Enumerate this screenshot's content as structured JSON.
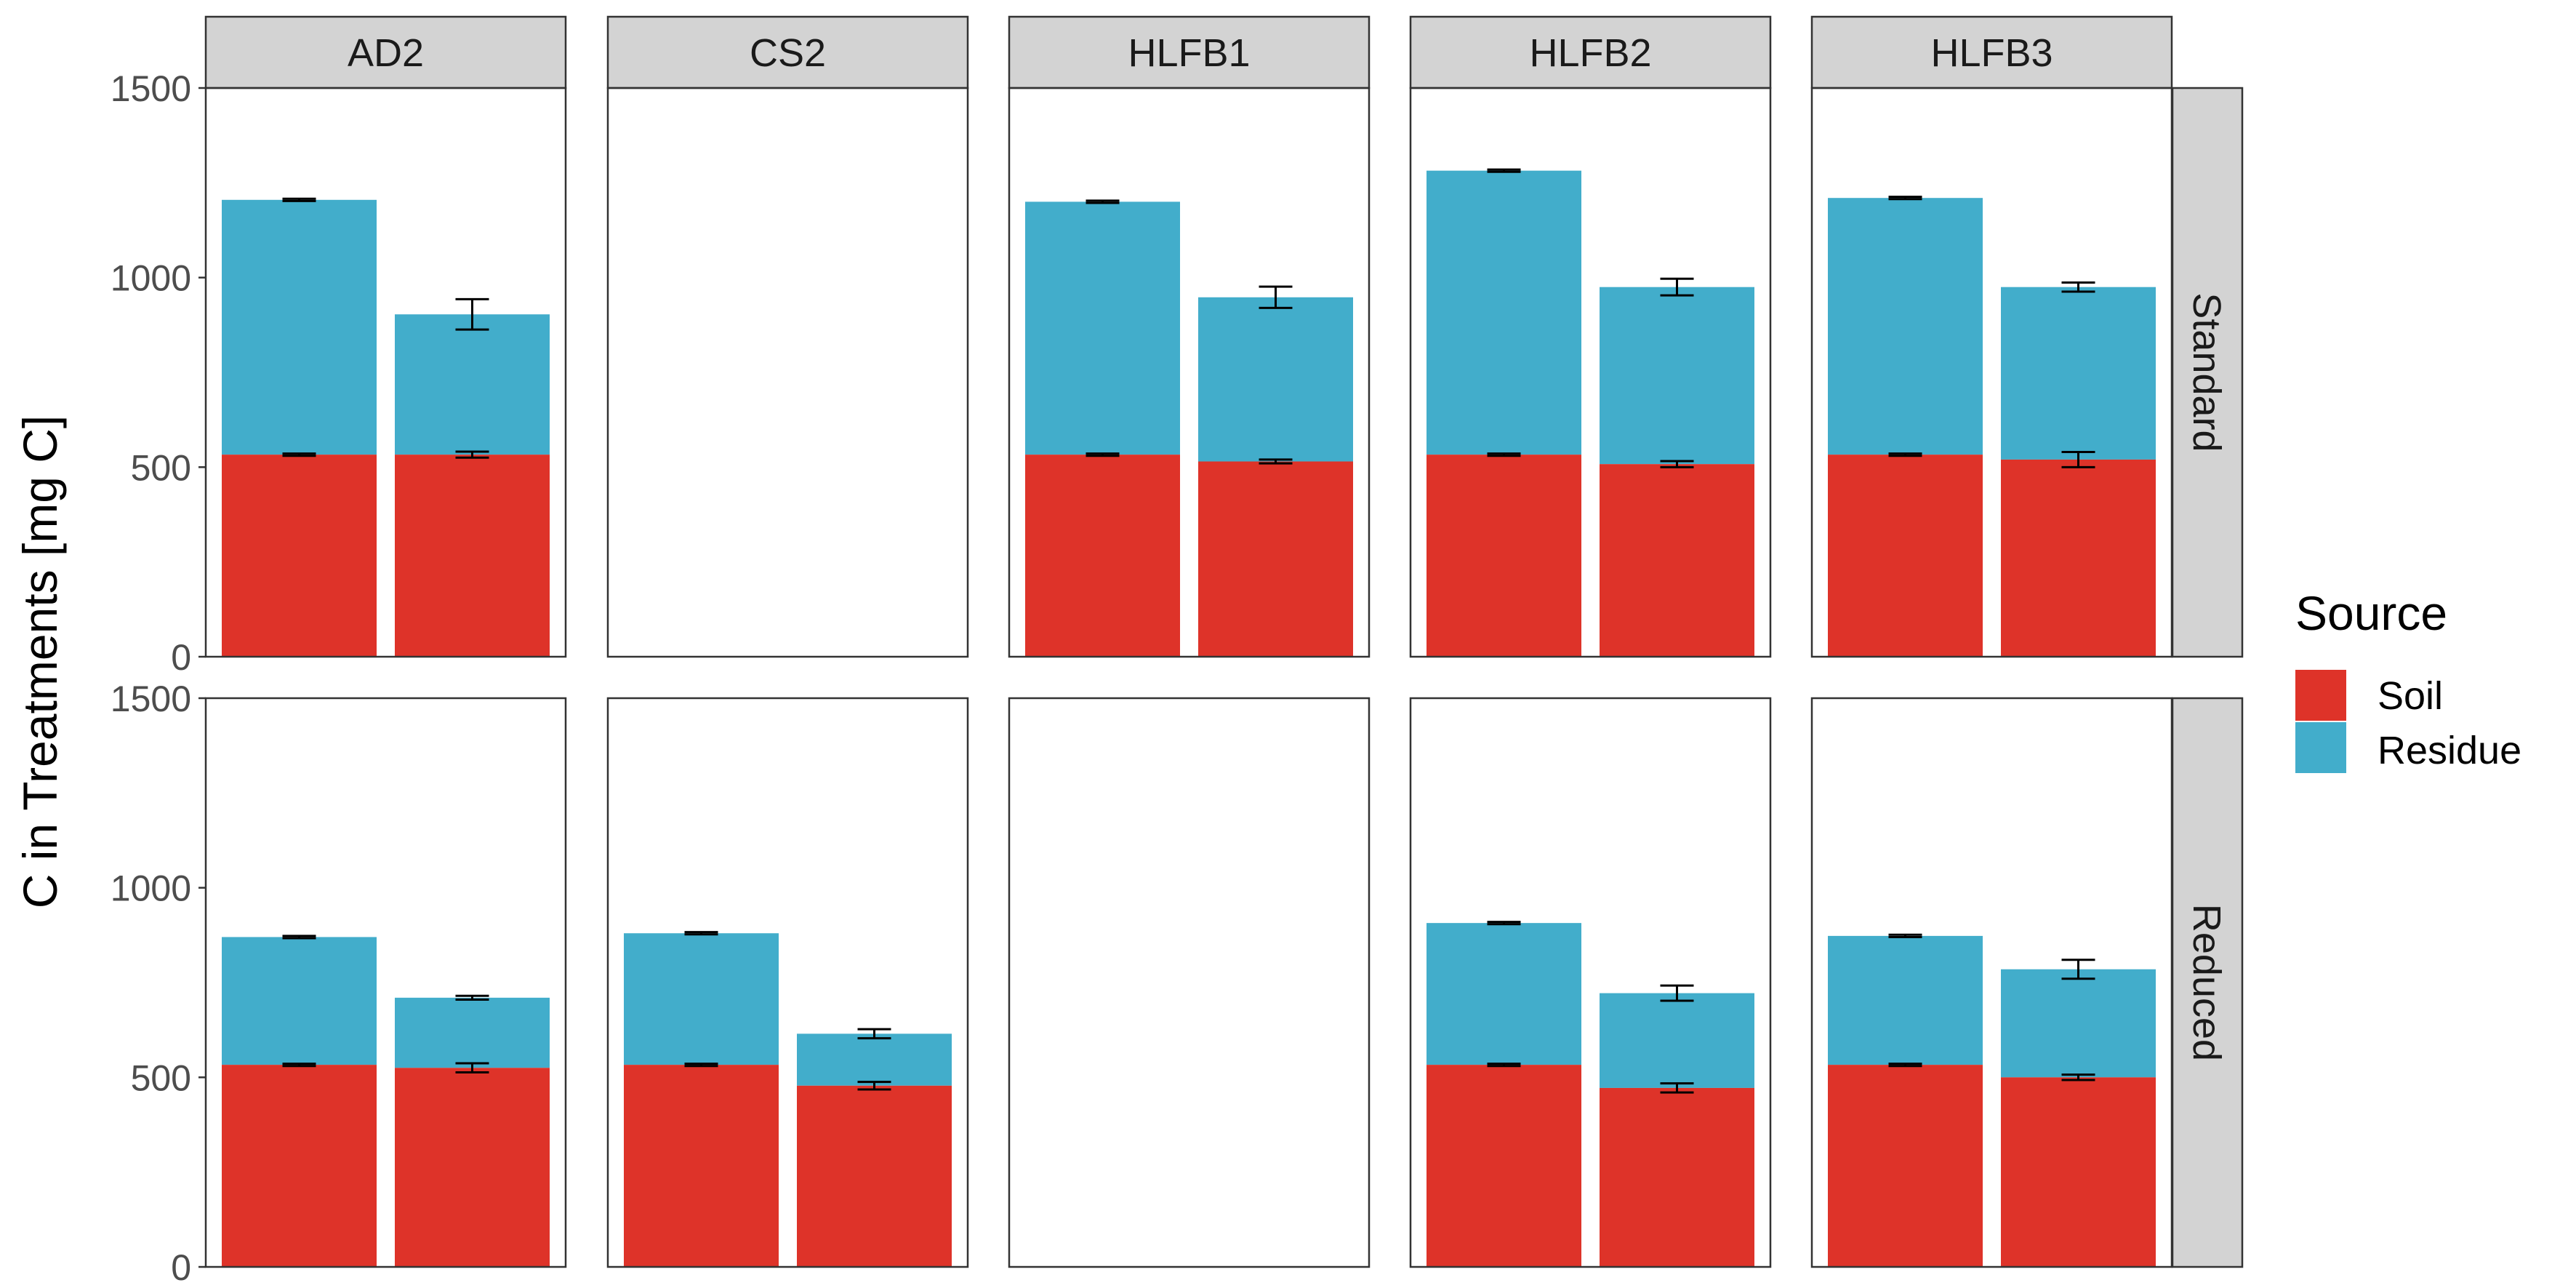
{
  "chart_data": {
    "type": "bar",
    "stacked": true,
    "ylabel": "C in Treatments [mg C]",
    "ylim": [
      0,
      1500
    ],
    "yticks": [
      0,
      500,
      1000,
      1500
    ],
    "grid": false,
    "legend": {
      "title": "Source",
      "placement": "right",
      "entries": [
        {
          "name": "Soil",
          "color": "#DE3329"
        },
        {
          "name": "Residue",
          "color": "#42ADCB"
        }
      ]
    },
    "columns": [
      "AD2",
      "CS2",
      "HLFB1",
      "HLFB2",
      "HLFB3"
    ],
    "rows": [
      "Standard",
      "Reduced"
    ],
    "panels": [
      {
        "row": "Standard",
        "col": "AD2",
        "bars": [
          {
            "soil": 533,
            "soil_err": 3,
            "total": 1205,
            "total_err": 3
          },
          {
            "soil": 533,
            "soil_err": 8,
            "total": 903,
            "total_err": 40
          }
        ]
      },
      {
        "row": "Standard",
        "col": "CS2",
        "bars": []
      },
      {
        "row": "Standard",
        "col": "HLFB1",
        "bars": [
          {
            "soil": 533,
            "soil_err": 3,
            "total": 1200,
            "total_err": 3
          },
          {
            "soil": 515,
            "soil_err": 5,
            "total": 948,
            "total_err": 28
          }
        ]
      },
      {
        "row": "Standard",
        "col": "HLFB2",
        "bars": [
          {
            "soil": 533,
            "soil_err": 3,
            "total": 1282,
            "total_err": 3
          },
          {
            "soil": 508,
            "soil_err": 8,
            "total": 975,
            "total_err": 22
          }
        ]
      },
      {
        "row": "Standard",
        "col": "HLFB3",
        "bars": [
          {
            "soil": 533,
            "soil_err": 3,
            "total": 1210,
            "total_err": 3
          },
          {
            "soil": 520,
            "soil_err": 20,
            "total": 975,
            "total_err": 12
          }
        ]
      },
      {
        "row": "Reduced",
        "col": "AD2",
        "bars": [
          {
            "soil": 533,
            "soil_err": 3,
            "total": 870,
            "total_err": 3
          },
          {
            "soil": 525,
            "soil_err": 12,
            "total": 710,
            "total_err": 5
          }
        ]
      },
      {
        "row": "Reduced",
        "col": "CS2",
        "bars": [
          {
            "soil": 533,
            "soil_err": 3,
            "total": 880,
            "total_err": 3
          },
          {
            "soil": 478,
            "soil_err": 10,
            "total": 615,
            "total_err": 12
          }
        ]
      },
      {
        "row": "Reduced",
        "col": "HLFB1",
        "bars": []
      },
      {
        "row": "Reduced",
        "col": "HLFB2",
        "bars": [
          {
            "soil": 533,
            "soil_err": 3,
            "total": 907,
            "total_err": 3
          },
          {
            "soil": 472,
            "soil_err": 12,
            "total": 722,
            "total_err": 20
          }
        ]
      },
      {
        "row": "Reduced",
        "col": "HLFB3",
        "bars": [
          {
            "soil": 533,
            "soil_err": 3,
            "total": 873,
            "total_err": 3
          },
          {
            "soil": 500,
            "soil_err": 7,
            "total": 785,
            "total_err": 25
          }
        ]
      }
    ]
  }
}
